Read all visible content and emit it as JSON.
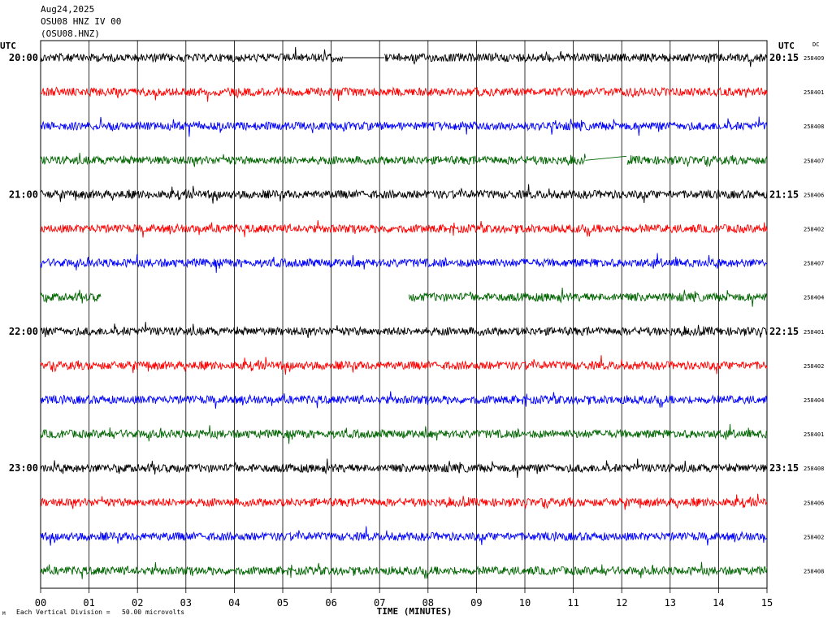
{
  "header": {
    "date": "Aug24,2025",
    "station_line": "OSU08 HNZ IV 00",
    "station_code": "(OSU08.HNZ)"
  },
  "footer": {
    "scale_note": "Each Vertical Division =   50.00 microvolts",
    "mark": "M"
  },
  "colors": {
    "black": "#000000",
    "red": "#ff0000",
    "blue": "#0000ff",
    "green": "#006400",
    "grid": "#000000"
  },
  "chart_data": {
    "type": "line",
    "title": "",
    "xlabel": "TIME (MINUTES)",
    "ylabel": "",
    "left_axis_label": "UTC",
    "right_axis_label": "UTC",
    "dc_label": "DC",
    "xlim": [
      0,
      15
    ],
    "x_ticks": [
      "00",
      "01",
      "02",
      "03",
      "04",
      "05",
      "06",
      "07",
      "08",
      "09",
      "10",
      "11",
      "12",
      "13",
      "14",
      "15"
    ],
    "grid": "vertical every minute",
    "traces": [
      {
        "left": "20:00",
        "right": "20:15",
        "color": "black",
        "dc": "258409",
        "gaps": [
          [
            6.25,
            7.1
          ]
        ]
      },
      {
        "left": "",
        "right": "",
        "color": "red",
        "dc": "258401",
        "gaps": []
      },
      {
        "left": "",
        "right": "",
        "color": "blue",
        "dc": "258408",
        "gaps": []
      },
      {
        "left": "",
        "right": "",
        "color": "green",
        "dc": "258407",
        "gaps": [
          [
            11.25,
            12.1
          ]
        ]
      },
      {
        "left": "21:00",
        "right": "21:15",
        "color": "black",
        "dc": "258406",
        "gaps": []
      },
      {
        "left": "",
        "right": "",
        "color": "red",
        "dc": "258402",
        "gaps": []
      },
      {
        "left": "",
        "right": "",
        "color": "blue",
        "dc": "258407",
        "gaps": []
      },
      {
        "left": "",
        "right": "",
        "color": "green",
        "dc": "258404",
        "gaps": [
          [
            1.25,
            7.6
          ]
        ]
      },
      {
        "left": "22:00",
        "right": "22:15",
        "color": "black",
        "dc": "258401",
        "gaps": []
      },
      {
        "left": "",
        "right": "",
        "color": "red",
        "dc": "258402",
        "gaps": []
      },
      {
        "left": "",
        "right": "",
        "color": "blue",
        "dc": "258404",
        "gaps": []
      },
      {
        "left": "",
        "right": "",
        "color": "green",
        "dc": "258401",
        "gaps": []
      },
      {
        "left": "23:00",
        "right": "23:15",
        "color": "black",
        "dc": "258408",
        "gaps": []
      },
      {
        "left": "",
        "right": "",
        "color": "red",
        "dc": "258406",
        "gaps": []
      },
      {
        "left": "",
        "right": "",
        "color": "blue",
        "dc": "258402",
        "gaps": []
      },
      {
        "left": "",
        "right": "",
        "color": "green",
        "dc": "258408",
        "gaps": []
      }
    ]
  }
}
